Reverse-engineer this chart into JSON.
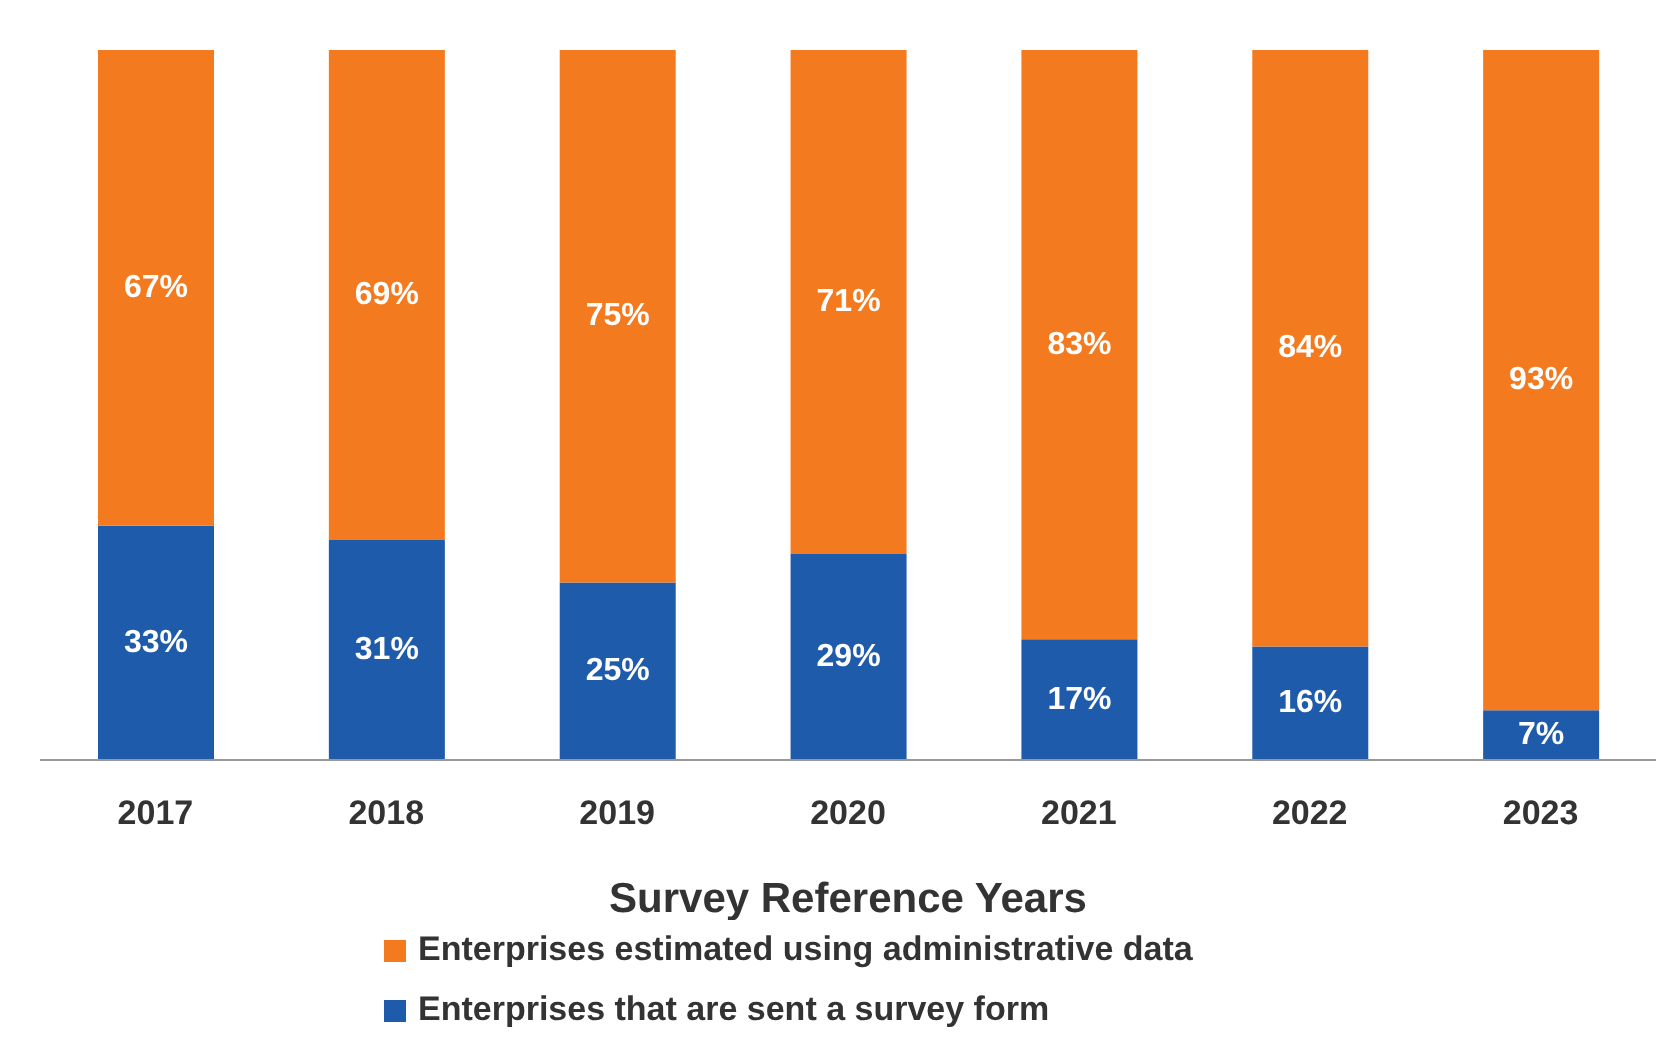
{
  "chart_data": {
    "type": "bar",
    "stacked": true,
    "xlabel": "Survey Reference Years",
    "categories": [
      "2017",
      "2018",
      "2019",
      "2020",
      "2021",
      "2022",
      "2023"
    ],
    "legend": "bottom",
    "grid": false,
    "series": [
      {
        "name": "Enterprises that are sent a survey form",
        "color": "#1f5bab",
        "values": [
          33,
          31,
          25,
          29,
          17,
          16,
          7
        ],
        "value_labels": [
          "33%",
          "31%",
          "25%",
          "29%",
          "17%",
          "16%",
          "7%"
        ]
      },
      {
        "name": "Enterprises estimated using administrative data",
        "color": "#f47a20",
        "values": [
          67,
          69,
          75,
          71,
          83,
          84,
          93
        ],
        "value_labels": [
          "67%",
          "69%",
          "75%",
          "71%",
          "83%",
          "84%",
          "93%"
        ]
      }
    ]
  }
}
